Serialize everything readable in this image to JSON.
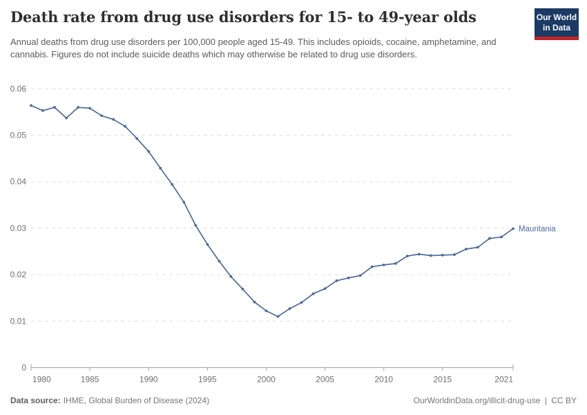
{
  "header": {
    "title": "Death rate from drug use disorders for 15- to 49-year olds",
    "subtitle": "Annual deaths from drug use disorders per 100,000 people aged 15-49. This includes opioids, cocaine, amphetamine, and cannabis. Figures do not include suicide deaths which may otherwise be related to drug use disorders.",
    "logo": {
      "line1": "Our World",
      "line2": "in Data"
    }
  },
  "chart_data": {
    "type": "line",
    "title": "Death rate from drug use disorders for 15- to 49-year olds",
    "xlabel": "",
    "ylabel": "",
    "xlim": [
      1980,
      2021
    ],
    "ylim": [
      0,
      0.06
    ],
    "grid": "horizontal-dashed",
    "legend_position": "end-of-line-label",
    "x": [
      1980,
      1981,
      1982,
      1983,
      1984,
      1985,
      1986,
      1987,
      1988,
      1989,
      1990,
      1991,
      1992,
      1993,
      1994,
      1995,
      1996,
      1997,
      1998,
      1999,
      2000,
      2001,
      2002,
      2003,
      2004,
      2005,
      2006,
      2007,
      2008,
      2009,
      2010,
      2011,
      2012,
      2013,
      2014,
      2015,
      2016,
      2017,
      2018,
      2019,
      2020,
      2021
    ],
    "series": [
      {
        "name": "Mauritania",
        "color": "#4C6A9C",
        "values": [
          0.0564,
          0.0553,
          0.056,
          0.0537,
          0.056,
          0.0558,
          0.0542,
          0.0534,
          0.0519,
          0.0493,
          0.0465,
          0.0429,
          0.0394,
          0.0356,
          0.0306,
          0.0265,
          0.0229,
          0.0196,
          0.0169,
          0.0141,
          0.0122,
          0.011,
          0.0127,
          0.014,
          0.0159,
          0.017,
          0.0187,
          0.0193,
          0.0198,
          0.0217,
          0.0221,
          0.0224,
          0.024,
          0.0244,
          0.0241,
          0.0242,
          0.0243,
          0.0255,
          0.0259,
          0.0278,
          0.0281,
          0.0299
        ]
      }
    ],
    "yticks": [
      {
        "v": 0,
        "label": "0"
      },
      {
        "v": 0.01,
        "label": "0.01"
      },
      {
        "v": 0.02,
        "label": "0.02"
      },
      {
        "v": 0.03,
        "label": "0.03"
      },
      {
        "v": 0.04,
        "label": "0.04"
      },
      {
        "v": 0.05,
        "label": "0.05"
      },
      {
        "v": 0.06,
        "label": "0.06"
      }
    ],
    "xticks": [
      {
        "v": 1980,
        "label": "1980"
      },
      {
        "v": 1985,
        "label": "1985"
      },
      {
        "v": 1990,
        "label": "1990"
      },
      {
        "v": 1995,
        "label": "1995"
      },
      {
        "v": 2000,
        "label": "2000"
      },
      {
        "v": 2005,
        "label": "2005"
      },
      {
        "v": 2010,
        "label": "2010"
      },
      {
        "v": 2015,
        "label": "2015"
      },
      {
        "v": 2021,
        "label": "2021"
      }
    ]
  },
  "footer": {
    "source_label": "Data source:",
    "source_value": "IHME, Global Burden of Disease (2024)",
    "link": "OurWorldinData.org/illicit-drug-use",
    "divider": "|",
    "license": "CC BY"
  },
  "colors": {
    "line": "#4C6A9C",
    "grid": "#dddddd",
    "axis": "#a3a3a3",
    "tick_text": "#6e6e6e",
    "series_label": "#4C6A9C",
    "logo_bg": "#1b3a64",
    "logo_accent": "#bf2525"
  }
}
